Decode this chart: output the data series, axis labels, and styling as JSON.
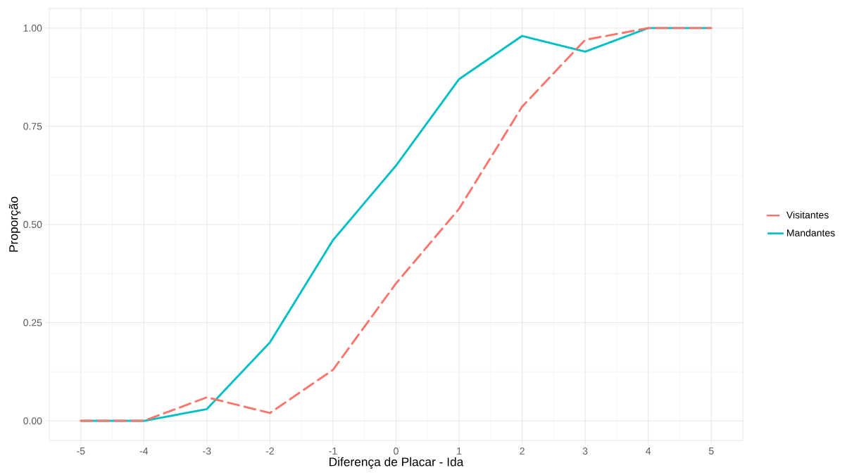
{
  "chart_data": {
    "type": "line",
    "xlabel": "Diferença de Placar - Ida",
    "ylabel": "Proporção",
    "x": [
      -5,
      -4,
      -3,
      -2,
      -1,
      0,
      1,
      2,
      3,
      4,
      5
    ],
    "series": [
      {
        "name": "Visitantes",
        "color": "#f8766d",
        "line_style": "dashed",
        "values": [
          0,
          0,
          0.06,
          0.02,
          0.13,
          0.35,
          0.54,
          0.8,
          0.97,
          1,
          1
        ]
      },
      {
        "name": "Mandantes",
        "color": "#00bfc4",
        "line_style": "solid",
        "values": [
          0,
          0,
          0.03,
          0.2,
          0.46,
          0.65,
          0.87,
          0.98,
          0.94,
          1,
          1
        ]
      }
    ],
    "xlim": [
      -5.5,
      5.5
    ],
    "ylim": [
      -0.05,
      1.05
    ],
    "xticks": [
      -5,
      -4,
      -3,
      -2,
      -1,
      0,
      1,
      2,
      3,
      4,
      5
    ],
    "yticks": [
      {
        "value": 0,
        "label": "0.00"
      },
      {
        "value": 0.25,
        "label": "0.25"
      },
      {
        "value": 0.5,
        "label": "0.50"
      },
      {
        "value": 0.75,
        "label": "0.75"
      },
      {
        "value": 1,
        "label": "1.00"
      }
    ],
    "grid": true,
    "legend": "right",
    "marker": "none"
  }
}
